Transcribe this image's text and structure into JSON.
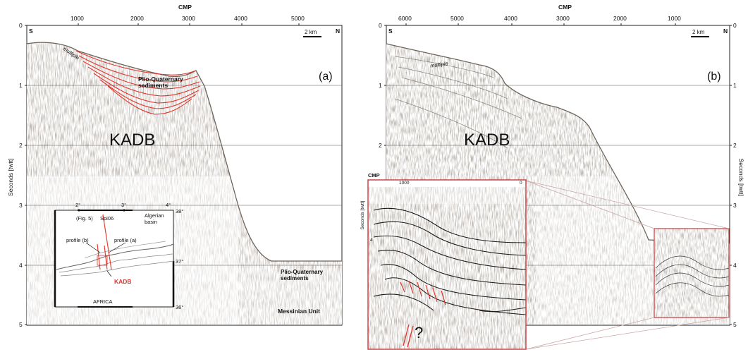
{
  "panel_a": {
    "cmp_title": "CMP",
    "cmp_ticks": [
      "1000",
      "2000",
      "3000",
      "4000",
      "5000"
    ],
    "y_ticks": [
      "0",
      "1",
      "2",
      "3",
      "4",
      "5"
    ],
    "y_axis_label": "Seconds [twtt]",
    "south": "S",
    "north": "N",
    "scale": "2 km",
    "panel_label": "(a)",
    "multiple": "multiple",
    "pq_top": "Plio-Quaternary\nsediments",
    "kadb": "KADB",
    "pq_basin": "Plio-Quaternary\nsediments",
    "messinian": "Messinian Unit",
    "inset": {
      "lon_2": "2°",
      "lon_3": "3°",
      "lon_4": "4°",
      "lat_38": "38°",
      "lat_37": "37°",
      "lat_36": "36°",
      "fig5": "(Fig. 5)",
      "line": "Spi06",
      "basin": "Algerian\nbasin",
      "profile_b": "profile (b)",
      "profile_a": "profile (a)",
      "kadb": "KADB",
      "africa": "AFRICA"
    }
  },
  "panel_b": {
    "cmp_title": "CMP",
    "cmp_ticks": [
      "6000",
      "5000",
      "4000",
      "3000",
      "2000",
      "1000"
    ],
    "y_ticks_left": [
      "0",
      "1",
      "2"
    ],
    "y_ticks_right": [
      "0",
      "1",
      "2",
      "3",
      "4",
      "5"
    ],
    "y_axis_label": "Seconds [twtt]",
    "south": "S",
    "north": "N",
    "scale": "2 km",
    "panel_label": "(b)",
    "multiple": "multiple",
    "kadb": "KADB",
    "zoom": {
      "cmp_title": "CMP",
      "cmp_1000": "1000",
      "cmp_0": "0",
      "y_label": "Seconds [twtt]",
      "y_4": "4",
      "question": "?"
    }
  },
  "colors": {
    "red_horizon": "#e0352b",
    "box_red": "#c93a3a",
    "seismic": "#8c8073"
  }
}
